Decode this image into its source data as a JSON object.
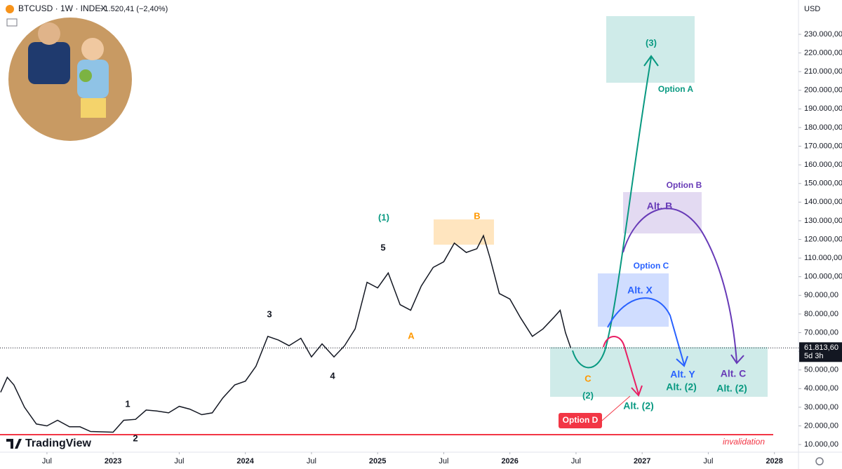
{
  "header": {
    "symbol": "BTCUSD · 1W · INDEX",
    "change": "−1.520,41 (−2,40%)"
  },
  "brand": "TradingView",
  "currency": "USD",
  "chart_data": {
    "type": "line",
    "color": "#131722",
    "grid": false,
    "x": [
      2022.15,
      2022.2,
      2022.25,
      2022.33,
      2022.42,
      2022.5,
      2022.58,
      2022.67,
      2022.75,
      2022.83,
      2022.92,
      2023.0,
      2023.08,
      2023.17,
      2023.25,
      2023.33,
      2023.42,
      2023.5,
      2023.58,
      2023.67,
      2023.75,
      2023.83,
      2023.92,
      2024.0,
      2024.08,
      2024.17,
      2024.25,
      2024.33,
      2024.42,
      2024.5,
      2024.58,
      2024.67,
      2024.75,
      2024.83,
      2024.92,
      2025.0,
      2025.08,
      2025.17,
      2025.25,
      2025.33,
      2025.42,
      2025.5,
      2025.58,
      2025.67,
      2025.75,
      2025.8,
      2025.85,
      2025.92,
      2026.0,
      2026.08,
      2026.17,
      2026.25,
      2026.33,
      2026.38,
      2026.42,
      2026.46
    ],
    "values": [
      38000,
      46000,
      42000,
      30000,
      21000,
      20000,
      23000,
      19500,
      19500,
      17000,
      16800,
      16600,
      23000,
      23500,
      28500,
      28000,
      27000,
      30500,
      29000,
      26000,
      27000,
      35000,
      42000,
      44000,
      52000,
      68000,
      66000,
      63000,
      67000,
      57000,
      64000,
      57000,
      63000,
      72000,
      97000,
      94000,
      102000,
      85000,
      82000,
      95000,
      105000,
      108000,
      118000,
      113000,
      115000,
      122000,
      110000,
      91000,
      88000,
      78000,
      68000,
      72000,
      78000,
      82000,
      70000,
      61813.6
    ],
    "last_price_label": "61.813,60",
    "countdown": "5d 3h",
    "xlim": [
      2022.145,
      2028.182
    ],
    "xticks": [
      {
        "value": 2022.5,
        "label": "Jul"
      },
      2023,
      {
        "value": 2023.5,
        "label": "Jul"
      },
      2024,
      {
        "value": 2024.5,
        "label": "Jul"
      },
      2025,
      {
        "value": 2025.5,
        "label": "Jul"
      },
      2026,
      {
        "value": 2026.5,
        "label": "Jul"
      },
      2027,
      {
        "value": 2027.5,
        "label": "Jul"
      },
      2028
    ],
    "ylim": [
      5900,
      248400
    ],
    "yticks": [
      {
        "value": 10000,
        "label": "10.000,00"
      },
      {
        "value": 20000,
        "label": "20.000,00"
      },
      {
        "value": 30000,
        "label": "30.000,00"
      },
      {
        "value": 40000,
        "label": "40.000,00"
      },
      {
        "value": 50000,
        "label": "50.000,00"
      },
      {
        "value": 60000,
        "label": "60.000,00"
      },
      {
        "value": 70000,
        "label": "70.000,00"
      },
      {
        "value": 80000,
        "label": "80.000,00"
      },
      {
        "value": 90000,
        "label": "90.000,00"
      },
      {
        "value": 100000,
        "label": "100.000,00"
      },
      {
        "value": 110000,
        "label": "110.000,00"
      },
      {
        "value": 120000,
        "label": "120.000,00"
      },
      {
        "value": 130000,
        "label": "130.000,00"
      },
      {
        "value": 140000,
        "label": "140.000,00"
      },
      {
        "value": 150000,
        "label": "150.000,00"
      },
      {
        "value": 160000,
        "label": "160.000,00"
      },
      {
        "value": 170000,
        "label": "170.000,00"
      },
      {
        "value": 180000,
        "label": "180.000,00"
      },
      {
        "value": 190000,
        "label": "190.000,00"
      },
      {
        "value": 200000,
        "label": "200.000,00"
      },
      {
        "value": 210000,
        "label": "210.000,00"
      },
      {
        "value": 220000,
        "label": "220.000,00"
      },
      {
        "value": 230000,
        "label": "230.000,00"
      }
    ],
    "annotations": [
      "(3)",
      "Option A",
      "Option B",
      "Alt. B",
      "Option C",
      "Alt. X",
      "(1)",
      "B",
      "5",
      "3",
      "A",
      "4",
      "1",
      "2",
      "C",
      "(2)",
      "Alt. Y",
      "Alt. (2)",
      "Alt. C",
      "Alt. (2)",
      "Alt. (2)",
      "Option D",
      "invalidation"
    ]
  }
}
